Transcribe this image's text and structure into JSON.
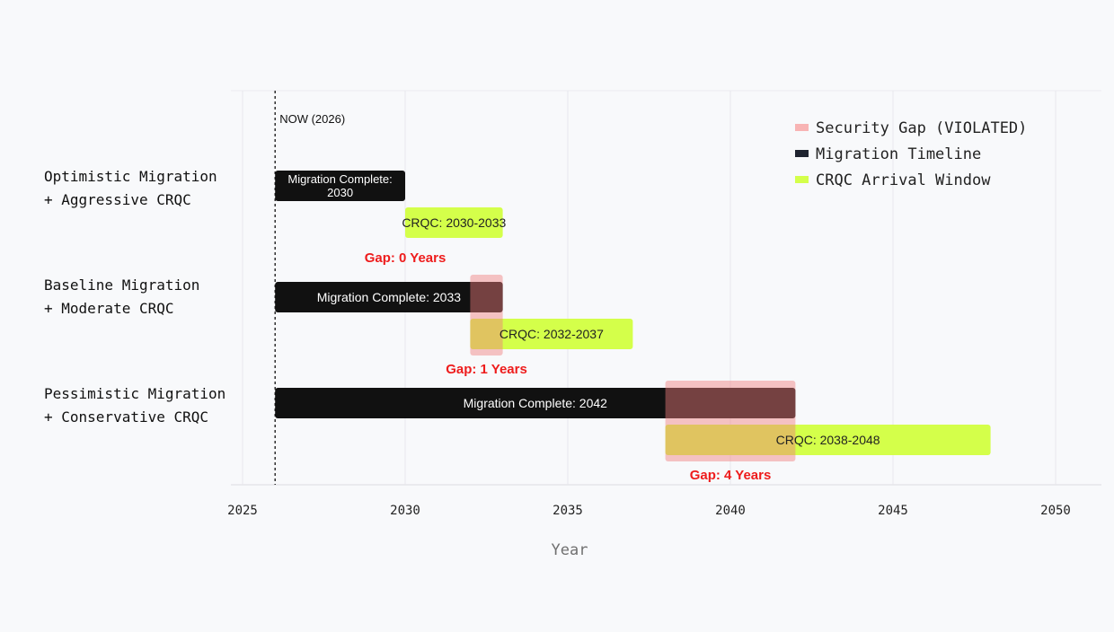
{
  "chart_data": {
    "type": "bar",
    "orientation": "horizontal-range",
    "title": "",
    "xlabel": "Year",
    "ylabel": "",
    "xlim": [
      2024.7,
      2051.5
    ],
    "x_ticks": [
      2025,
      2030,
      2035,
      2040,
      2045,
      2050
    ],
    "grid": true,
    "legend_position": "top-right",
    "now_marker": {
      "x": 2026,
      "label": "NOW (2026)"
    },
    "legend": [
      {
        "key": "gap",
        "label": "Security Gap (VIOLATED)",
        "color": "#f8b4b4"
      },
      {
        "key": "migration",
        "label": "Migration Timeline",
        "color": "#1f2430"
      },
      {
        "key": "crqc",
        "label": "CRQC Arrival Window",
        "color": "#d4ff4a"
      }
    ],
    "scenarios": [
      {
        "label_line1": "Optimistic Migration",
        "label_line2": "+ Aggressive CRQC",
        "migration": {
          "start": 2026,
          "end": 2030,
          "label_line1": "Migration Complete:",
          "label_line2": "2030"
        },
        "crqc": {
          "start": 2030,
          "end": 2033,
          "label": "CRQC: 2030-2033"
        },
        "gap": {
          "start": 2030,
          "end": 2030,
          "label": "Gap: 0 Years"
        }
      },
      {
        "label_line1": "Baseline Migration",
        "label_line2": "+ Moderate CRQC",
        "migration": {
          "start": 2026,
          "end": 2033,
          "label_line1": "Migration Complete: 2033",
          "label_line2": ""
        },
        "crqc": {
          "start": 2032,
          "end": 2037,
          "label": "CRQC: 2032-2037"
        },
        "gap": {
          "start": 2032,
          "end": 2033,
          "label": "Gap: 1 Years"
        }
      },
      {
        "label_line1": "Pessimistic Migration",
        "label_line2": "+ Conservative CRQC",
        "migration": {
          "start": 2026,
          "end": 2042,
          "label_line1": "Migration Complete: 2042",
          "label_line2": ""
        },
        "crqc": {
          "start": 2038,
          "end": 2048,
          "label": "CRQC: 2038-2048"
        },
        "gap": {
          "start": 2038,
          "end": 2042,
          "label": "Gap: 4 Years"
        }
      }
    ]
  }
}
